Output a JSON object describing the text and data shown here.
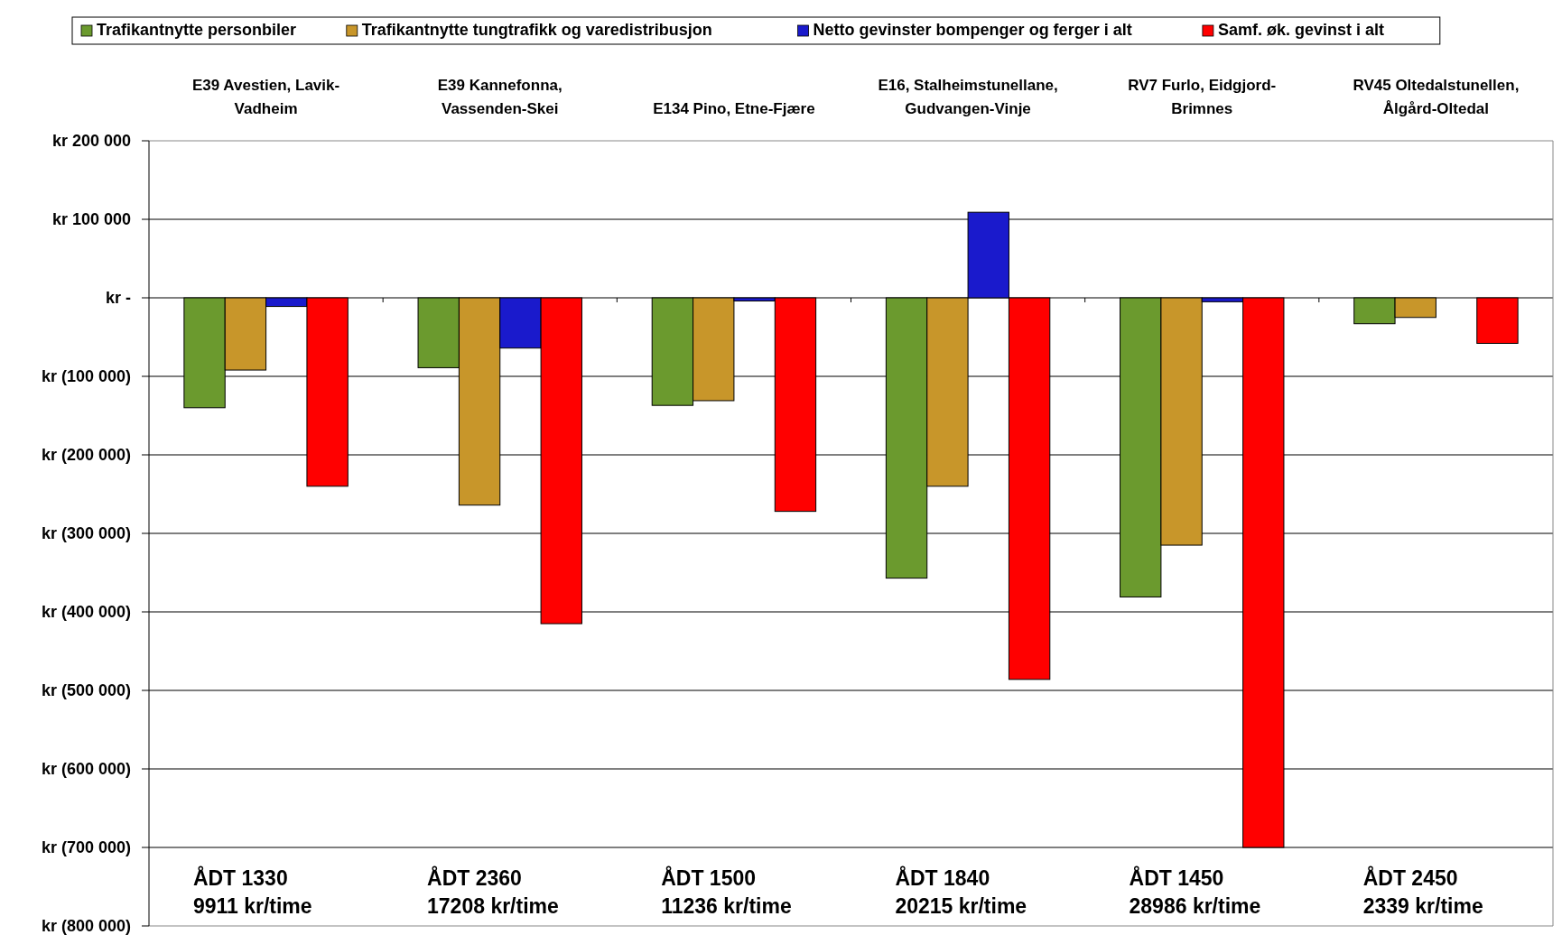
{
  "chart_data": {
    "type": "bar",
    "categories": [
      "E39 Avestien, Lavik-Vadheim",
      "E39 Kannefonna, Vassenden-Skei",
      "E134 Pino, Etne-Fjære",
      "E16, Stalheimstunellane, Gudvangen-Vinje",
      "RV7 Furlo, Eidgjord-Brimnes",
      "RV45 Oltedalstunellen, Ålgård-Oltedal"
    ],
    "series": [
      {
        "name": "Trafikantnytte personbiler",
        "color": "#6b9a2e",
        "values": [
          -140000,
          -89000,
          -137000,
          -357000,
          -381000,
          -33000
        ]
      },
      {
        "name": "Trafikantnytte tungtrafikk og varedistribusjon",
        "color": "#c8962a",
        "values": [
          -92000,
          -264000,
          -131000,
          -240000,
          -315000,
          -25000
        ]
      },
      {
        "name": "Netto gevinster bompenger og ferger i alt",
        "color": "#1a1acc",
        "values": [
          -11000,
          -64000,
          -4000,
          109000,
          -5000,
          0
        ]
      },
      {
        "name": "Samf. øk. gevinst i alt",
        "color": "#ff0000",
        "values": [
          -240000,
          -415000,
          -272000,
          -486000,
          -700000,
          -58000
        ]
      }
    ],
    "ylim": [
      -800000,
      200000
    ],
    "yticks": [
      {
        "value": 200000,
        "label": "kr 200 000"
      },
      {
        "value": 100000,
        "label": "kr 100 000"
      },
      {
        "value": 0,
        "label": "kr -"
      },
      {
        "value": -100000,
        "label": "kr (100 000)"
      },
      {
        "value": -200000,
        "label": "kr (200 000)"
      },
      {
        "value": -300000,
        "label": "kr (300 000)"
      },
      {
        "value": -400000,
        "label": "kr (400 000)"
      },
      {
        "value": -500000,
        "label": "kr (500 000)"
      },
      {
        "value": -600000,
        "label": "kr (600 000)"
      },
      {
        "value": -700000,
        "label": "kr (700 000)"
      },
      {
        "value": -800000,
        "label": "kr (800 000)"
      }
    ],
    "grid": "y",
    "legend": "top",
    "annotations": [
      "ÅDT 1330\n9911 kr/time",
      "ÅDT 2360\n17208 kr/time",
      "ÅDT 1500\n11236 kr/time",
      "ÅDT 1840\n20215 kr/time",
      "ÅDT 1450\n28986 kr/time",
      "ÅDT 2450\n2339 kr/time"
    ]
  }
}
